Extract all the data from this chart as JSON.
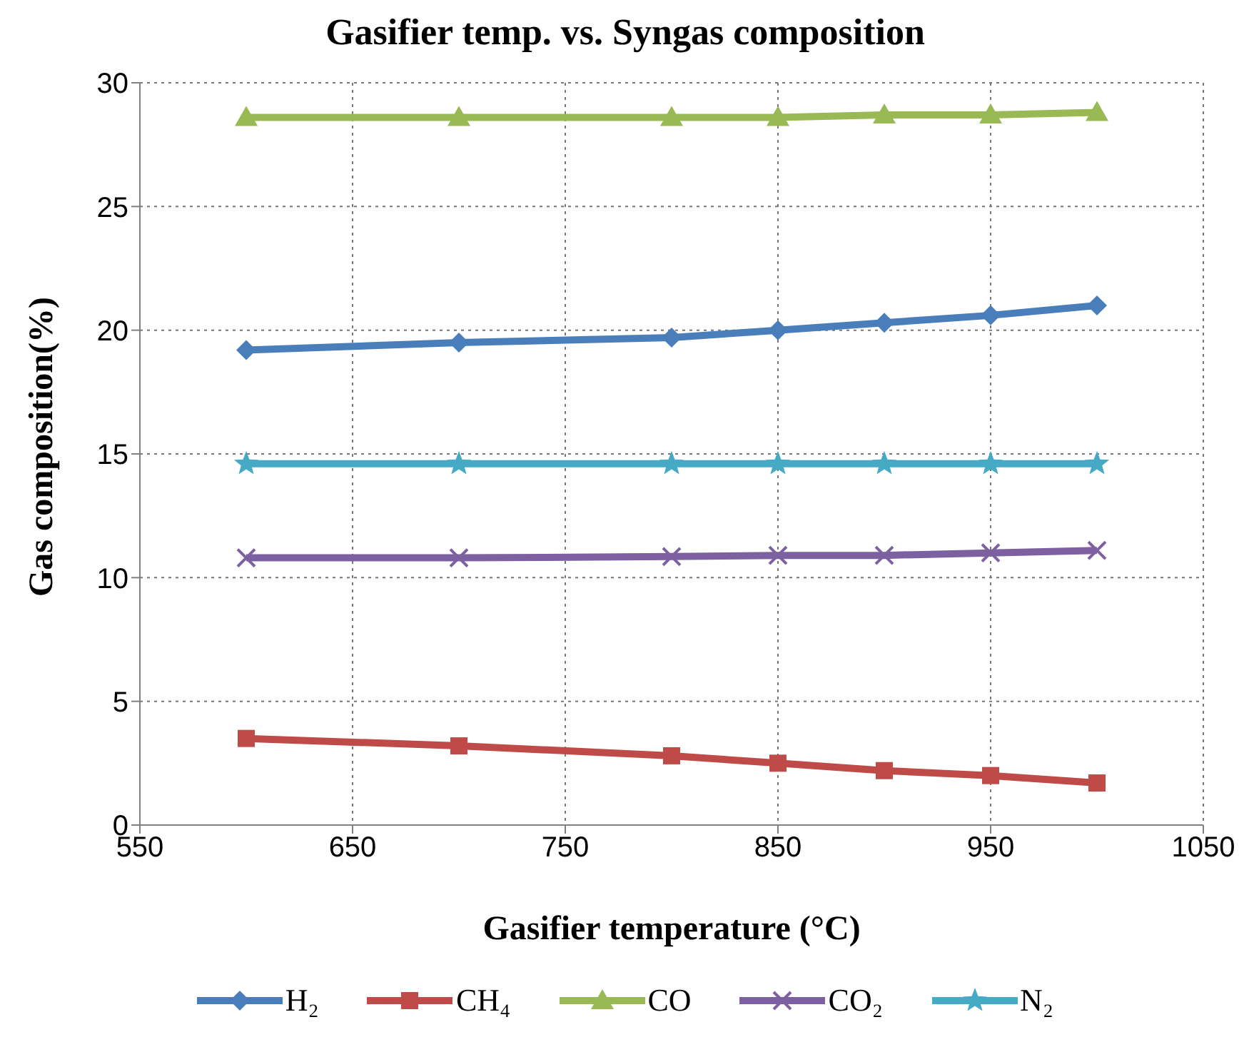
{
  "chart_data": {
    "type": "line",
    "title": "Gasifier temp. vs. Syngas composition",
    "xlabel": "Gasifier temperature (°C)",
    "ylabel": "Gas composition(%)",
    "x": [
      600,
      700,
      800,
      850,
      900,
      950,
      1000
    ],
    "xlim": [
      550,
      1050
    ],
    "xticks": [
      550,
      650,
      750,
      850,
      950,
      1050
    ],
    "ylim": [
      0,
      30
    ],
    "yticks": [
      0,
      5,
      10,
      15,
      20,
      25,
      30
    ],
    "grid": true,
    "legend": "bottom",
    "line_style": "solid",
    "series": [
      {
        "name": "H₂",
        "color": "#4a7ebb",
        "marker": "diamond",
        "values": [
          19.2,
          19.5,
          19.7,
          20.0,
          20.3,
          20.6,
          21.0
        ]
      },
      {
        "name": "CH₄",
        "color": "#be4b48",
        "marker": "square",
        "values": [
          3.5,
          3.2,
          2.8,
          2.5,
          2.2,
          2.0,
          1.7
        ]
      },
      {
        "name": "CO",
        "color": "#98b954",
        "marker": "triangle",
        "values": [
          28.6,
          28.6,
          28.6,
          28.6,
          28.7,
          28.7,
          28.8
        ]
      },
      {
        "name": "CO₂",
        "color": "#7d60a0",
        "marker": "cross",
        "values": [
          10.8,
          10.8,
          10.85,
          10.9,
          10.9,
          11.0,
          11.1
        ]
      },
      {
        "name": "N₂",
        "color": "#46aac5",
        "marker": "star",
        "values": [
          14.6,
          14.6,
          14.6,
          14.6,
          14.6,
          14.6,
          14.6
        ]
      }
    ]
  }
}
